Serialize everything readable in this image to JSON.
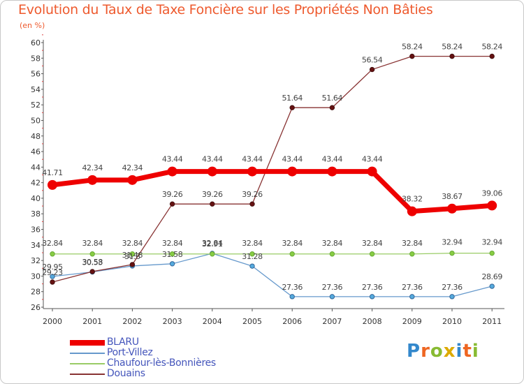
{
  "chart_data": {
    "type": "line",
    "title": "Evolution du Taux de Taxe Foncière sur les Propriétés Non Bâties",
    "ylabel": "(en %)",
    "xlabel": "",
    "categories": [
      "2000",
      "2001",
      "2002",
      "2003",
      "2004",
      "2005",
      "2006",
      "2007",
      "2008",
      "2009",
      "2010",
      "2011"
    ],
    "ylim": [
      26,
      60
    ],
    "yticks": [
      "26",
      "28",
      "30",
      "32",
      "34",
      "36",
      "38",
      "40",
      "42",
      "44",
      "46",
      "48",
      "50",
      "52",
      "54",
      "56",
      "58",
      "60"
    ],
    "series": [
      {
        "name": "BLARU",
        "color": "#ee0000",
        "values": [
          41.71,
          42.34,
          42.34,
          43.44,
          43.44,
          43.44,
          43.44,
          43.44,
          43.44,
          38.32,
          38.67,
          39.06
        ],
        "labels": [
          "41.71",
          "42.34",
          "42.34",
          "43.44",
          "43.44",
          "43.44",
          "43.44",
          "43.44",
          "43.44",
          "38.32",
          "38.67",
          "39.06"
        ]
      },
      {
        "name": "Port-Villez",
        "color": "#6699cc",
        "values": [
          29.95,
          30.53,
          31.3,
          31.58,
          32.91,
          31.28,
          27.36,
          27.36,
          27.36,
          27.36,
          27.36,
          28.69
        ],
        "labels": [
          "29.95",
          "30.53",
          "31.3",
          "31.58",
          "32.91",
          "31.28",
          "27.36",
          "27.36",
          "27.36",
          "27.36",
          "27.36",
          "28.69"
        ]
      },
      {
        "name": "Chaufour-lès-Bonnières",
        "color": "#99cc66",
        "values": [
          32.84,
          32.84,
          32.84,
          32.84,
          32.84,
          32.84,
          32.84,
          32.84,
          32.84,
          32.84,
          32.94,
          32.94
        ],
        "labels": [
          "32.84",
          "32.84",
          "32.84",
          "32.84",
          "32.84",
          "32.84",
          "32.84",
          "32.84",
          "32.84",
          "32.84",
          "32.94",
          "32.94"
        ]
      },
      {
        "name": "Douains",
        "color": "#883333",
        "values": [
          29.23,
          30.58,
          31.48,
          39.26,
          39.26,
          39.26,
          51.64,
          51.64,
          56.54,
          58.24,
          58.24,
          58.24
        ],
        "labels": [
          "29.23",
          "30.58",
          "31.48",
          "39.26",
          "39.26",
          "39.26",
          "51.64",
          "51.64",
          "56.54",
          "58.24",
          "58.24",
          "58.24"
        ]
      }
    ],
    "legend_position": "bottom-left",
    "grid": false
  },
  "logo": {
    "letters": [
      "P",
      "r",
      "o",
      "x",
      "i",
      "t",
      "i"
    ],
    "colors": [
      "#3388cc",
      "#ee6622",
      "#88bb33",
      "#ddaa00",
      "#3388cc",
      "#ee6622",
      "#88bb33"
    ]
  }
}
